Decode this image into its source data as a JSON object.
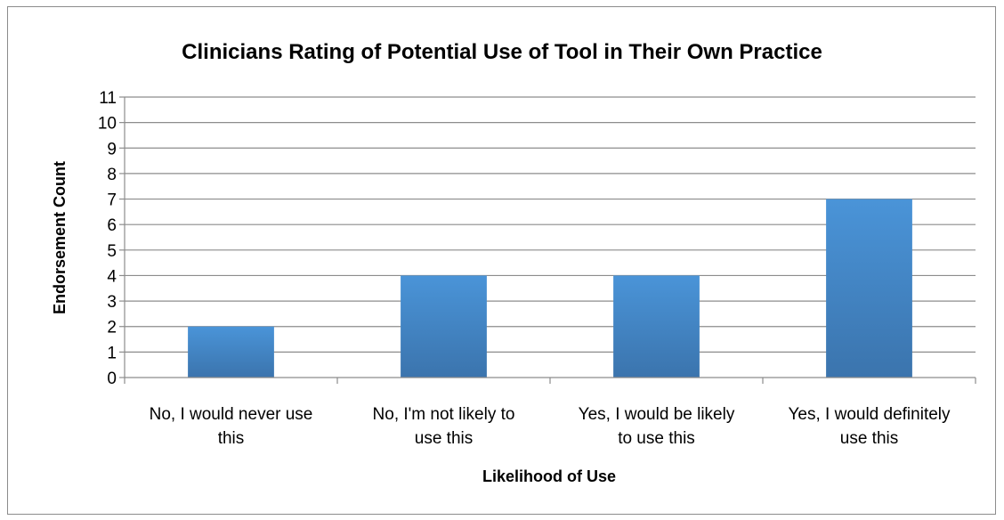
{
  "chart_data": {
    "type": "bar",
    "title": "Clinicians Rating of Potential Use of Tool in Their Own Practice",
    "xlabel": "Likelihood of Use",
    "ylabel": "Endorsement Count",
    "categories": [
      [
        "No, I would never use",
        "this"
      ],
      [
        "No, I'm not likely to",
        "use this"
      ],
      [
        "Yes, I would be likely",
        "to use this"
      ],
      [
        "Yes, I would definitely",
        "use this"
      ]
    ],
    "values": [
      2,
      4,
      4,
      7
    ],
    "ylim": [
      0,
      11
    ],
    "yticks": [
      "0",
      "1",
      "2",
      "3",
      "4",
      "5",
      "6",
      "7",
      "8",
      "9",
      "10",
      "11"
    ],
    "grid": true,
    "legend": "none",
    "bar_color_top": "#4a94d8",
    "bar_color_bottom": "#3b74ad"
  }
}
